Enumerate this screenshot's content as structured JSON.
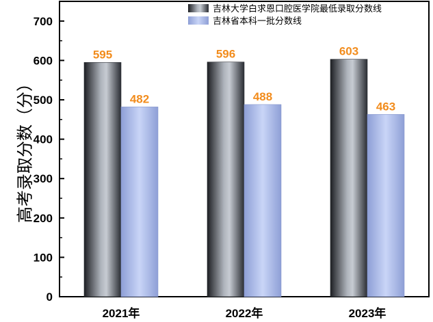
{
  "chart_data": {
    "type": "bar",
    "categories": [
      "2021年",
      "2022年",
      "2023年"
    ],
    "series": [
      {
        "name": "吉林大学白求恩口腔医学院最低录取分数线",
        "values": [
          595,
          596,
          603
        ],
        "color": "#4a4f57"
      },
      {
        "name": "吉林省本科一批分数线",
        "values": [
          482,
          488,
          463
        ],
        "color": "#9fb1e6"
      }
    ],
    "ylabel": "高考录取分数（分）",
    "xlabel": "",
    "ylim": [
      0,
      750
    ],
    "yticks": [
      0,
      100,
      200,
      300,
      400,
      500,
      600,
      700
    ],
    "legend_position": "top-right",
    "data_label_color": "#f28c1c",
    "grid": false
  }
}
